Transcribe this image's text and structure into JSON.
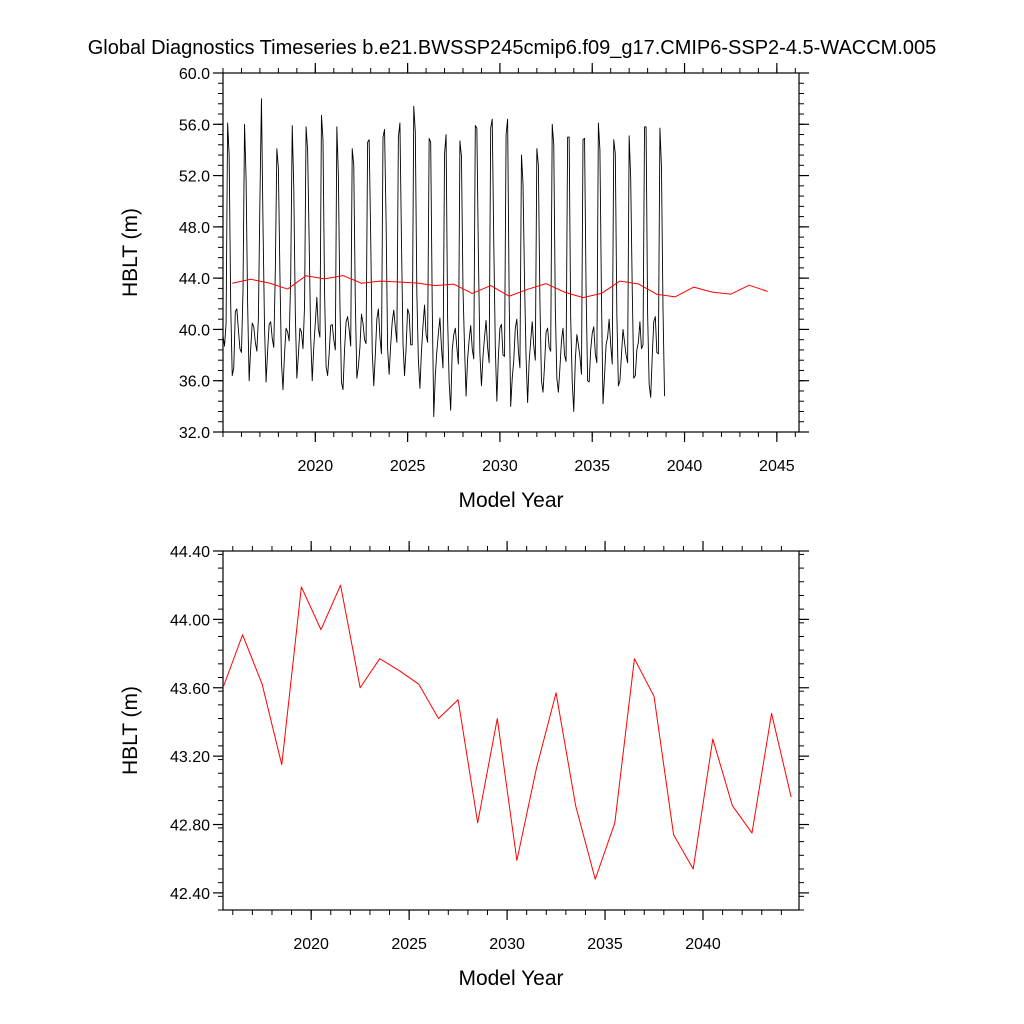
{
  "title": "Global Diagnostics Timeseries b.e21.BWSSP245cmip6.f09_g17.CMIP6-SSP2-4.5-WACCM.005",
  "chart_data": [
    {
      "type": "line",
      "xlabel": "Model Year",
      "ylabel": "HBLT (m)",
      "xlim": [
        2015,
        2046.2
      ],
      "ylim": [
        32.0,
        60.0
      ],
      "yticks": [
        "32.0",
        "36.0",
        "40.0",
        "44.0",
        "48.0",
        "52.0",
        "56.0",
        "60.0"
      ],
      "xticks": [
        "2020",
        "2025",
        "2030",
        "2035",
        "2040",
        "2045"
      ],
      "grid": false,
      "series": [
        {
          "style": "monthly",
          "color": "#000000",
          "start_year": 2015.0,
          "step_years": 0.0833333,
          "values": [
            39.5,
            38.7,
            40.5,
            56.1,
            53.6,
            42.0,
            36.4,
            37.0,
            41.4,
            41.6,
            40.0,
            38.5,
            38.2,
            43.0,
            56.0,
            51.8,
            42.0,
            36.0,
            38.5,
            40.5,
            40.2,
            39.0,
            38.3,
            40.8,
            50.1,
            58.0,
            48.2,
            40.1,
            35.9,
            38.3,
            40.4,
            40.6,
            39.3,
            38.6,
            44.5,
            54.1,
            52.6,
            44.3,
            37.4,
            35.3,
            38.1,
            40.1,
            39.8,
            39.1,
            44.0,
            55.9,
            51.1,
            41.3,
            36.2,
            38.0,
            40.1,
            39.8,
            38.5,
            41.8,
            55.8,
            54.0,
            46.9,
            39.4,
            36.0,
            38.6,
            40.5,
            42.5,
            40.0,
            39.4,
            56.7,
            54.8,
            43.0,
            37.1,
            36.4,
            38.1,
            40.3,
            40.4,
            39.2,
            38.4,
            55.8,
            52.0,
            42.0,
            35.9,
            35.3,
            38.4,
            40.6,
            41.0,
            40.0,
            38.7,
            54.1,
            52.8,
            42.2,
            36.2,
            37.1,
            38.6,
            41.2,
            40.5,
            39.2,
            38.9,
            54.6,
            54.8,
            47.2,
            38.3,
            35.6,
            38.0,
            40.8,
            41.6,
            39.4,
            38.1,
            55.0,
            55.6,
            48.5,
            38.5,
            36.5,
            38.8,
            40.6,
            41.5,
            40.2,
            39.0,
            55.0,
            56.1,
            46.9,
            38.9,
            36.4,
            38.5,
            41.6,
            41.2,
            38.8,
            38.8,
            57.4,
            55.4,
            42.8,
            37.6,
            35.4,
            38.3,
            40.3,
            41.9,
            39.6,
            39.0,
            54.9,
            54.6,
            41.9,
            33.2,
            36.4,
            38.3,
            39.7,
            40.9,
            38.6,
            37.0,
            53.7,
            55.2,
            40.8,
            35.9,
            33.7,
            38.4,
            39.6,
            40.1,
            38.6,
            37.3,
            54.7,
            53.5,
            43.1,
            38.6,
            34.8,
            37.7,
            39.2,
            40.3,
            38.5,
            37.7,
            55.9,
            55.7,
            45.9,
            38.1,
            35.6,
            37.9,
            39.4,
            40.7,
            38.6,
            37.4,
            55.7,
            56.4,
            46.8,
            38.6,
            34.4,
            37.9,
            40.1,
            40.4,
            38.0,
            37.9,
            55.2,
            56.4,
            42.5,
            34.0,
            36.2,
            37.6,
            40.1,
            40.8,
            38.3,
            37.0,
            53.6,
            51.4,
            43.7,
            37.8,
            34.3,
            37.5,
            39.1,
            40.6,
            38.7,
            37.6,
            54.1,
            52.8,
            42.2,
            36.0,
            35.1,
            37.2,
            39.8,
            40.1,
            38.6,
            38.3,
            56.0,
            54.4,
            41.7,
            36.2,
            35.1,
            37.0,
            39.1,
            40.1,
            38.0,
            37.5,
            55.0,
            55.0,
            40.9,
            35.9,
            33.6,
            37.6,
            39.6,
            38.8,
            37.9,
            36.5,
            54.8,
            54.9,
            43.1,
            36.0,
            35.9,
            38.4,
            39.7,
            40.2,
            38.1,
            37.4,
            56.1,
            54.0,
            42.5,
            34.2,
            36.4,
            38.8,
            39.4,
            40.8,
            38.8,
            37.3,
            54.8,
            53.7,
            41.2,
            35.6,
            36.0,
            38.0,
            40.0,
            39.0,
            38.0,
            37.4,
            55.1,
            51.8,
            43.2,
            36.2,
            36.4,
            38.4,
            39.0,
            40.6,
            38.5,
            38.8,
            55.8,
            55.8,
            41.2,
            35.7,
            34.7,
            37.9,
            40.6,
            41.0,
            38.2,
            38.1,
            55.7,
            52.7,
            41.6,
            34.8
          ]
        },
        {
          "style": "annual",
          "color": "#ff0000",
          "start_year": 2015.5,
          "step_years": 1.0,
          "values": [
            43.6,
            43.91,
            43.62,
            43.15,
            44.19,
            43.94,
            44.2,
            43.6,
            43.77,
            43.7,
            43.62,
            43.42,
            43.53,
            42.81,
            43.42,
            42.59,
            43.13,
            43.57,
            42.91,
            42.48,
            42.81,
            43.77,
            43.55,
            42.74,
            42.54,
            43.3,
            42.91,
            42.75,
            43.45,
            42.96
          ]
        }
      ]
    },
    {
      "type": "line",
      "xlabel": "Model Year",
      "ylabel": "HBLT (m)",
      "xlim": [
        2015.5,
        2044.9
      ],
      "ylim": [
        42.3,
        44.4
      ],
      "yticks": [
        "42.40",
        "42.80",
        "43.20",
        "43.60",
        "44.00",
        "44.40"
      ],
      "xticks": [
        "2020",
        "2025",
        "2030",
        "2035",
        "2040"
      ],
      "grid": false,
      "series": [
        {
          "style": "annual",
          "color": "#ff0000",
          "start_year": 2015.5,
          "step_years": 1.0,
          "values": [
            43.6,
            43.91,
            43.62,
            43.15,
            44.19,
            43.94,
            44.2,
            43.6,
            43.77,
            43.7,
            43.62,
            43.42,
            43.53,
            42.81,
            43.42,
            42.59,
            43.13,
            43.57,
            42.91,
            42.48,
            42.81,
            43.77,
            43.55,
            42.74,
            42.54,
            43.3,
            42.91,
            42.75,
            43.45,
            42.96
          ]
        }
      ]
    }
  ]
}
